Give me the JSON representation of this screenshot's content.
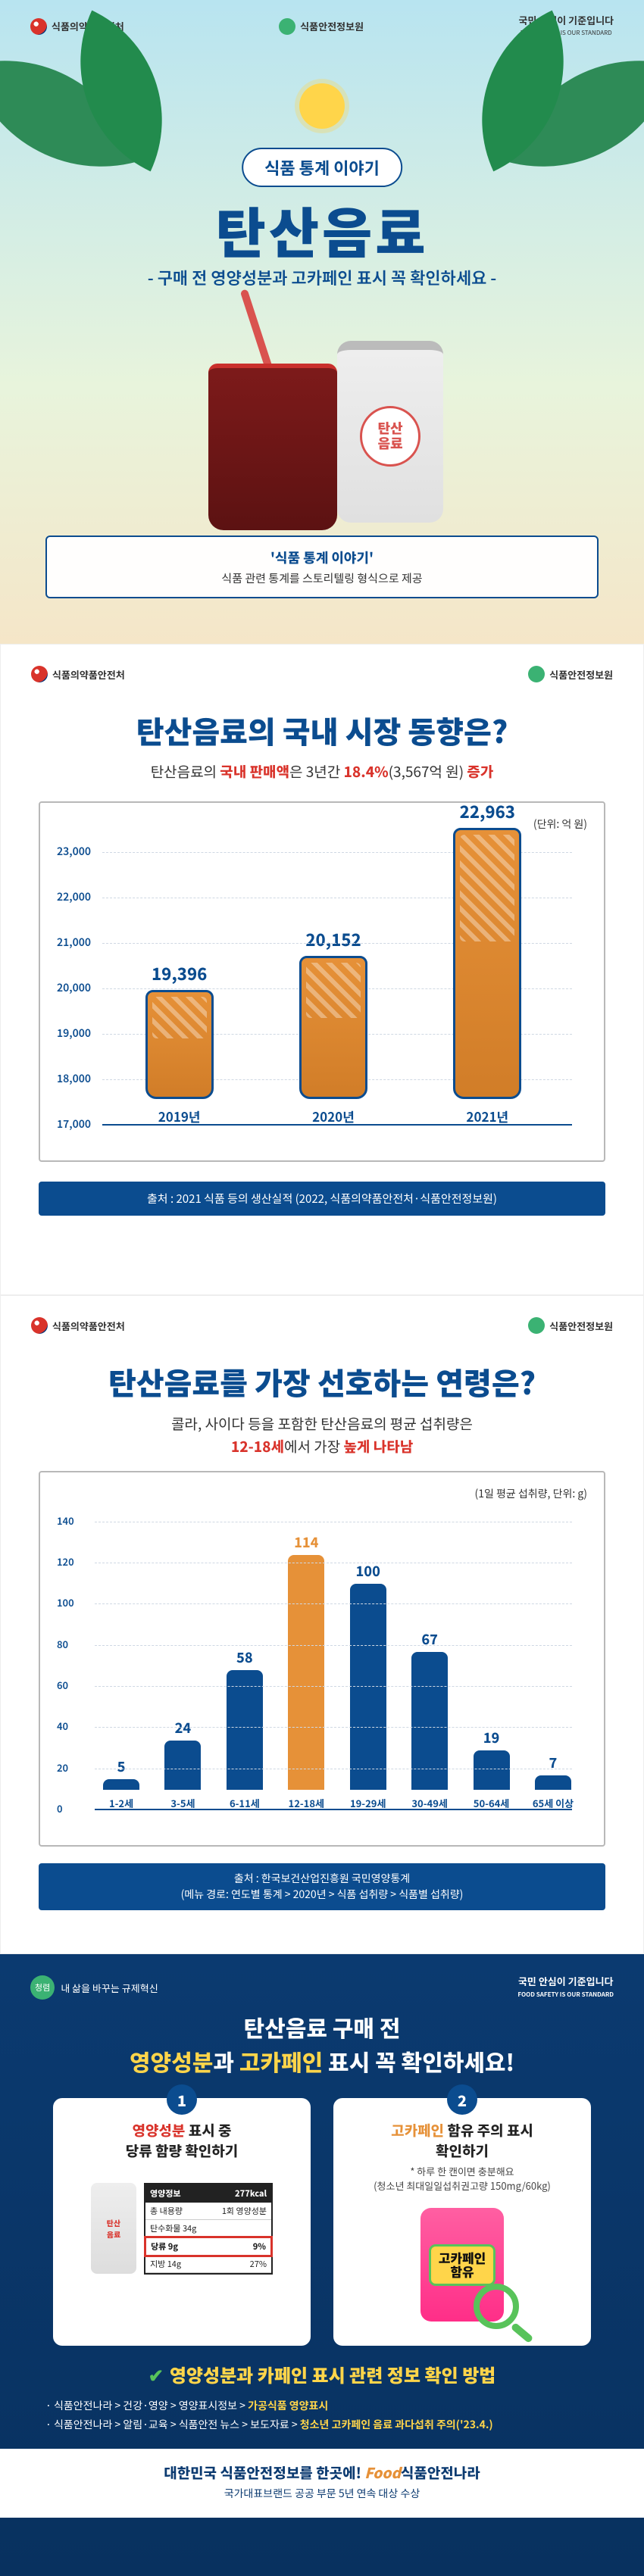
{
  "logos": {
    "mfds": "식품의약품안전처",
    "nfsi": "식품안전정보원",
    "slogan": "국민 안심이 기준입니다",
    "slogan_sub": "FOOD SAFETY IS OUR STANDARD"
  },
  "panel1": {
    "badge": "식품 통계 이야기",
    "title": "탄산음료",
    "subtitle": "- 구매 전 영양성분과 고카페인 표시 꼭 확인하세요 -",
    "can_label_1": "탄산",
    "can_label_2": "음료",
    "info_title": "'식품 통계 이야기'",
    "info_desc": "식품 관련 통계를 스토리텔링 형식으로 제공"
  },
  "panel2": {
    "title": "탄산음료의 국내 시장 동향은?",
    "sub_pre": "탄산음료의 ",
    "sub_red1": "국내 판매액",
    "sub_mid": "은 3년간 ",
    "sub_red2": "18.4%",
    "sub_amount": "(3,567억 원) ",
    "sub_red3": "증가",
    "chart": {
      "unit": "(단위: 억 원)",
      "ylim": [
        17000,
        23000
      ],
      "ytick_step": 1000,
      "categories": [
        "2019년",
        "2020년",
        "2021년"
      ],
      "values": [
        19396,
        20152,
        22963
      ],
      "value_labels": [
        "19,396",
        "20,152",
        "22,963"
      ],
      "bar_color": "#e69138",
      "border_color": "#0b4c8f",
      "text_color": "#0b4c8f"
    },
    "source": "출처 : 2021 식품 등의 생산실적 (2022, 식품의약품안전처·식품안전정보원)"
  },
  "panel3": {
    "title": "탄산음료를 가장 선호하는 연령은?",
    "sub_line1": "콜라, 사이다 등을 포함한 탄산음료의 평균 섭취량은",
    "sub_red": "12-18세",
    "sub_tail": "에서 가장 ",
    "sub_red2": "높게 나타남",
    "chart": {
      "unit": "(1일 평균 섭취량, 단위: g)",
      "ylim": [
        0,
        140
      ],
      "ytick_step": 20,
      "categories": [
        "1-2세",
        "3-5세",
        "6-11세",
        "12-18세",
        "19-29세",
        "30-49세",
        "50-64세",
        "65세 이상"
      ],
      "values": [
        5,
        24,
        58,
        114,
        100,
        67,
        19,
        7
      ],
      "highlight_index": 3,
      "bar_color": "#0b4c8f",
      "highlight_color": "#e69138",
      "text_color": "#0b4c8f"
    },
    "source_l1": "출처 : 한국보건산업진흥원 국민영양통계",
    "source_l2": "(메뉴 경로: 연도별 통계 > 2020년 > 식품 섭취량 > 식품별 섭취량)"
  },
  "panel4": {
    "badge_left1": "청렴",
    "badge_left2": "내 삶을 바꾸는 규제혁신",
    "title_l1": "탄산음료 구매 전",
    "title_ny": "영양성분",
    "title_mid": "과 ",
    "title_hc": "고카페인",
    "title_tail": " 표시 꼭 확인하세요!",
    "card1": {
      "num": "1",
      "title_red": "영양성분",
      "title_tail": " 표시 중",
      "title_line2": "당류 함량 확인하기",
      "label_header": "영양정보",
      "label_kcal": "277kcal",
      "rows": [
        {
          "k": "총 내용량",
          "v": "1회 영양성분"
        },
        {
          "k": "탄수화물 34g",
          "v": ""
        },
        {
          "k": "당류 9g",
          "v": "9%"
        },
        {
          "k": "지방 14g",
          "v": "27%"
        }
      ],
      "highlight_row": 2
    },
    "card2": {
      "num": "2",
      "title_orange": "고카페인",
      "title_tail": " 함유 주의 표시",
      "title_line2": "확인하기",
      "sub1": "* 하루 한 캔이면 충분해요",
      "sub2": "(청소년 최대일일섭취권고량 150mg/60kg)",
      "tag_l1": "고카페인",
      "tag_l2": "함유"
    },
    "check_title": "영양성분과 카페인 표시 관련 정보 확인 방법",
    "bullet1_pre": "· 식품안전나라 > 건강·영양 > 영양표시정보 > ",
    "bullet1_b": "가공식품 영양표시",
    "bullet2_pre": "· 식품안전나라 > 알림·교육 > 식품안전 뉴스 > 보도자료 > ",
    "bullet2_b": "청소년 고카페인 음료 과다섭취 주의('23.4.)",
    "footer_l1_pre": "대한민국 식품안전정보를 한곳에! ",
    "footer_brand": "Food",
    "footer_brand_tail": "식품안전나라",
    "footer_l2": "국가대표브랜드 공공 부문 5년 연속 대상 수상"
  }
}
